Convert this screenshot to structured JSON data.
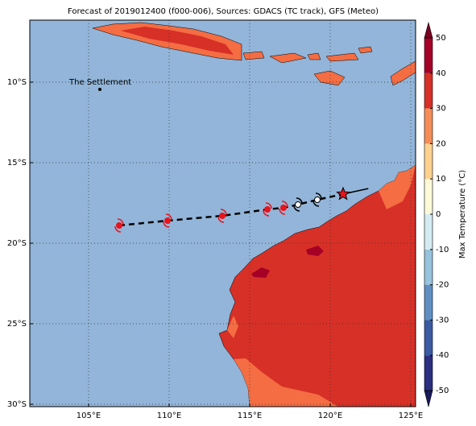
{
  "map": {
    "title": "Forecast of 2019012400 (f000-006), Sources: GDACS (TC track), GFS (Meteo)",
    "lonlim": [
      101.35,
      125.3
    ],
    "latlim": [
      -30.15,
      -6.15
    ],
    "lonticks": [
      {
        "value": 105,
        "label": "105°E"
      },
      {
        "value": 110,
        "label": "110°E"
      },
      {
        "value": 115,
        "label": "115°E"
      },
      {
        "value": 120,
        "label": "120°E"
      },
      {
        "value": 125,
        "label": "125°E"
      }
    ],
    "latticks": [
      {
        "value": -10,
        "label": "10°S"
      },
      {
        "value": -15,
        "label": "15°S"
      },
      {
        "value": -20,
        "label": "20°S"
      },
      {
        "value": -25,
        "label": "25°S"
      },
      {
        "value": -30,
        "label": "30°S"
      }
    ],
    "place": {
      "label": "The Settlement",
      "lon": 105.7,
      "lat": -10.45
    },
    "track": {
      "lon": [
        106.9,
        109.9,
        113.3,
        116.1,
        117.1,
        118.0,
        119.2,
        120.8
      ],
      "lat": [
        -18.9,
        -18.6,
        -18.3,
        -17.9,
        -17.8,
        -17.6,
        -17.3,
        -16.95
      ],
      "colors": [
        "#e8141c",
        "#e8141c",
        "#e8141c",
        "#e8141c",
        "#e8141c",
        "#ffffff",
        "#ffffff",
        "#e8141c"
      ]
    },
    "colorbar": {
      "label": "Max Temperature (°C)",
      "ticks": [
        -50,
        -40,
        -30,
        -20,
        -10,
        0,
        10,
        20,
        30,
        40,
        50
      ],
      "colors": [
        "#2b2f80",
        "#3b5aa3",
        "#5f8fc2",
        "#97c3dd",
        "#d4ebf2",
        "#fefad8",
        "#fdd18e",
        "#f68d57",
        "#d73027",
        "#a50026"
      ],
      "extend_colors": [
        "#1a1a5c",
        "#7a0022"
      ]
    }
  }
}
